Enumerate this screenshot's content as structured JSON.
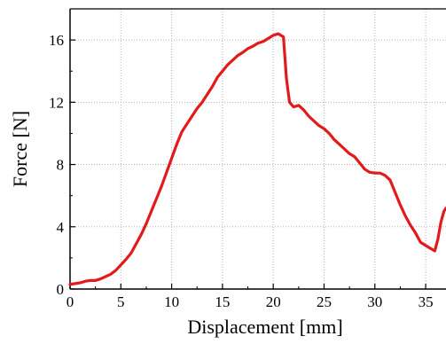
{
  "chart_data": {
    "type": "line",
    "title": "",
    "xlabel": "Displacement [mm]",
    "ylabel": "Force [N]",
    "xlim": [
      0,
      37
    ],
    "ylim": [
      0,
      18
    ],
    "xticks": [
      0,
      5,
      10,
      15,
      20,
      25,
      30,
      35
    ],
    "yticks": [
      0,
      4,
      8,
      12,
      16
    ],
    "grid": true,
    "legend": "none",
    "series": [
      {
        "color": "#e31a1c",
        "points": [
          [
            0,
            0.3
          ],
          [
            0.5,
            0.35
          ],
          [
            1,
            0.4
          ],
          [
            1.5,
            0.5
          ],
          [
            2,
            0.55
          ],
          [
            2.5,
            0.55
          ],
          [
            3,
            0.65
          ],
          [
            3.5,
            0.8
          ],
          [
            4,
            0.95
          ],
          [
            4.5,
            1.2
          ],
          [
            5,
            1.55
          ],
          [
            5.5,
            1.9
          ],
          [
            6,
            2.3
          ],
          [
            6.5,
            2.9
          ],
          [
            7,
            3.5
          ],
          [
            7.5,
            4.2
          ],
          [
            8,
            5.0
          ],
          [
            8.5,
            5.8
          ],
          [
            9,
            6.6
          ],
          [
            9.5,
            7.5
          ],
          [
            10,
            8.4
          ],
          [
            10.5,
            9.3
          ],
          [
            11,
            10.1
          ],
          [
            11.5,
            10.6
          ],
          [
            12,
            11.1
          ],
          [
            12.5,
            11.6
          ],
          [
            13,
            12.0
          ],
          [
            13.5,
            12.5
          ],
          [
            14,
            13.0
          ],
          [
            14.5,
            13.6
          ],
          [
            15,
            14.0
          ],
          [
            15.5,
            14.4
          ],
          [
            16,
            14.7
          ],
          [
            16.5,
            15.0
          ],
          [
            17,
            15.2
          ],
          [
            17.5,
            15.45
          ],
          [
            18,
            15.6
          ],
          [
            18.5,
            15.8
          ],
          [
            19,
            15.9
          ],
          [
            19.5,
            16.1
          ],
          [
            20,
            16.3
          ],
          [
            20.5,
            16.4
          ],
          [
            21,
            16.2
          ],
          [
            21.3,
            13.5
          ],
          [
            21.6,
            12.0
          ],
          [
            22,
            11.7
          ],
          [
            22.5,
            11.8
          ],
          [
            23,
            11.5
          ],
          [
            23.5,
            11.1
          ],
          [
            24,
            10.8
          ],
          [
            24.5,
            10.5
          ],
          [
            25,
            10.3
          ],
          [
            25.5,
            10.0
          ],
          [
            26,
            9.6
          ],
          [
            26.5,
            9.3
          ],
          [
            27,
            9.0
          ],
          [
            27.5,
            8.7
          ],
          [
            28,
            8.5
          ],
          [
            28.5,
            8.1
          ],
          [
            29,
            7.7
          ],
          [
            29.5,
            7.5
          ],
          [
            30,
            7.45
          ],
          [
            30.5,
            7.45
          ],
          [
            31,
            7.3
          ],
          [
            31.5,
            7.0
          ],
          [
            32,
            6.2
          ],
          [
            32.5,
            5.4
          ],
          [
            33,
            4.7
          ],
          [
            33.5,
            4.1
          ],
          [
            34,
            3.6
          ],
          [
            34.5,
            3.0
          ],
          [
            35,
            2.8
          ],
          [
            35.5,
            2.6
          ],
          [
            35.9,
            2.45
          ],
          [
            36.2,
            3.2
          ],
          [
            36.5,
            4.3
          ],
          [
            36.8,
            5.0
          ],
          [
            37,
            5.2
          ]
        ]
      }
    ]
  }
}
